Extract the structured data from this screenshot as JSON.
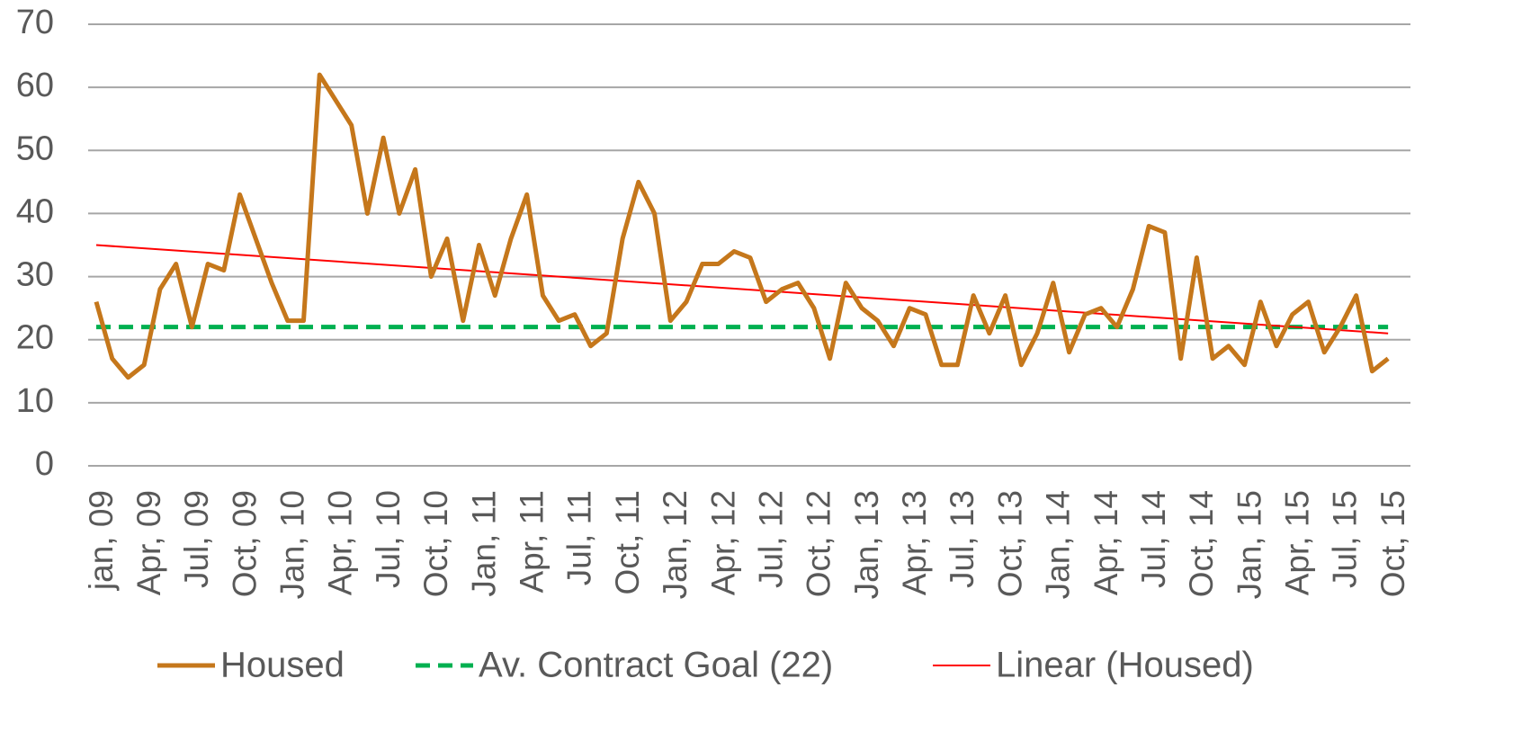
{
  "chart_data": {
    "type": "line",
    "categories": [
      "jan, 09",
      null,
      null,
      "Apr, 09",
      null,
      null,
      "Jul, 09",
      null,
      null,
      "Oct, 09",
      null,
      null,
      "Jan, 10",
      null,
      null,
      "Apr, 10",
      null,
      null,
      "Jul, 10",
      null,
      null,
      "Oct, 10",
      null,
      null,
      "Jan, 11",
      null,
      null,
      "Apr, 11",
      null,
      null,
      "Jul, 11",
      null,
      null,
      "Oct, 11",
      null,
      null,
      "Jan, 12",
      null,
      null,
      "Apr, 12",
      null,
      null,
      "Jul, 12",
      null,
      null,
      "Oct, 12",
      null,
      null,
      "Jan, 13",
      null,
      null,
      "Apr, 13",
      null,
      null,
      "Jul, 13",
      null,
      null,
      "Oct, 13",
      null,
      null,
      "Jan, 14",
      null,
      null,
      "Apr, 14",
      null,
      null,
      "Jul, 14",
      null,
      null,
      "Oct, 14",
      null,
      null,
      "Jan, 15",
      null,
      null,
      "Apr, 15",
      null,
      null,
      "Jul, 15",
      null,
      null,
      "Oct, 15"
    ],
    "series": [
      {
        "name": "Housed",
        "color": "#c5771b",
        "values": [
          26,
          17,
          14,
          16,
          28,
          32,
          22,
          32,
          31,
          43,
          36,
          29,
          23,
          23,
          62,
          58,
          54,
          40,
          52,
          40,
          47,
          30,
          36,
          23,
          35,
          27,
          36,
          43,
          27,
          23,
          24,
          19,
          21,
          36,
          45,
          40,
          23,
          26,
          32,
          32,
          34,
          33,
          26,
          28,
          29,
          25,
          17,
          29,
          25,
          23,
          19,
          25,
          24,
          16,
          16,
          27,
          21,
          27,
          16,
          21,
          29,
          18,
          24,
          25,
          22,
          28,
          38,
          37,
          17,
          33,
          17,
          19,
          16,
          26,
          19,
          24,
          26,
          18,
          22,
          27,
          15,
          17
        ]
      }
    ],
    "goal_line": {
      "name": "Av. Contract Goal (22)",
      "color": "#00b050",
      "value": 22
    },
    "trend_line": {
      "name": "Linear (Housed)",
      "color": "#ff0000",
      "start": 35,
      "end": 21
    },
    "ylim": [
      0,
      70
    ],
    "yticks": [
      0,
      10,
      20,
      30,
      40,
      50,
      60,
      70
    ],
    "grid": true,
    "legend": "bottom"
  }
}
